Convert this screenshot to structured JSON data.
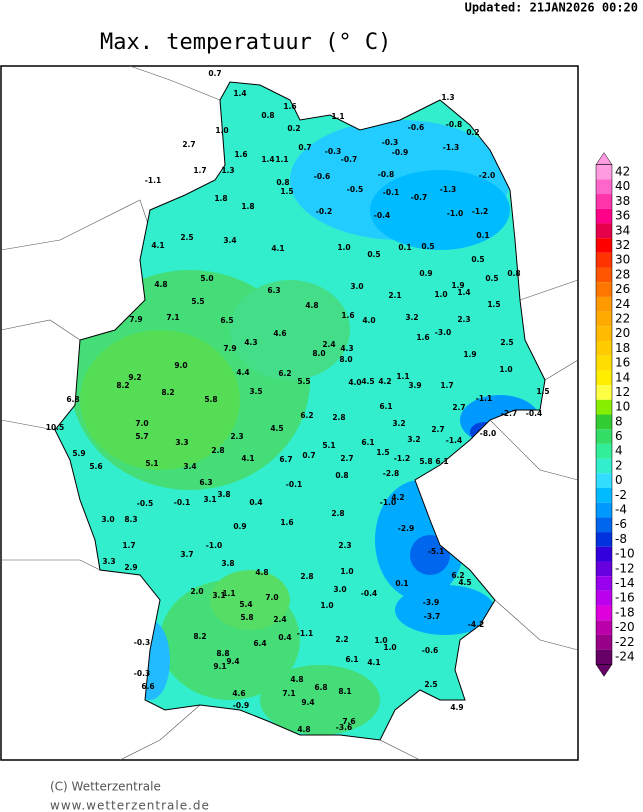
{
  "header": {
    "updated": "Updated: 21JAN2026  00:20",
    "title": "Max. temperatuur (° C)"
  },
  "colorbar": {
    "labels": [
      "42",
      "40",
      "38",
      "36",
      "34",
      "32",
      "30",
      "28",
      "26",
      "24",
      "22",
      "20",
      "18",
      "16",
      "14",
      "12",
      "10",
      "8",
      "6",
      "4",
      "2",
      "0",
      "-2",
      "-4",
      "-6",
      "-8",
      "-10",
      "-12",
      "-14",
      "-16",
      "-18",
      "-20",
      "-22",
      "-24"
    ],
    "colors": [
      "#ff9be0",
      "#ff66cc",
      "#ff33aa",
      "#ff0088",
      "#e6004c",
      "#ff0000",
      "#ff3300",
      "#ff5500",
      "#ff7700",
      "#ff9900",
      "#ffaa00",
      "#ffbb00",
      "#ffcc00",
      "#ffdd00",
      "#ffee00",
      "#ffff44",
      "#88ee00",
      "#33cc33",
      "#33dd66",
      "#33ee99",
      "#33eecc",
      "#33ddff",
      "#00bbff",
      "#0099ff",
      "#0066ee",
      "#0033dd",
      "#3300dd",
      "#6600dd",
      "#9900ee",
      "#bb00ee",
      "#dd00dd",
      "#bb00aa",
      "#990088",
      "#660066"
    ]
  },
  "stations": [
    "0.7",
    "1.4",
    "1.6",
    "0.8",
    "0.2",
    "1.1",
    "1.3",
    "-0.6",
    "-0.8",
    "0.2",
    "1.0",
    "2.7",
    "0.7",
    "-0.3",
    "-0.3",
    "-0.9",
    "-1.3",
    "1.6",
    "1.4",
    "1.1",
    "-0.7",
    "1.7",
    "1.3",
    "-0.6",
    "-0.8",
    "-2.0",
    "-1.1",
    "0.8",
    "1.5",
    "-0.5",
    "-0.1",
    "-1.3",
    "1.8",
    "-0.7",
    "1.8",
    "-0.2",
    "-0.4",
    "-1.0",
    "-1.2",
    "2.5",
    "3.4",
    "0.1",
    "4.1",
    "4.1",
    "1.0",
    "0.1",
    "0.5",
    "0.5",
    "0.5",
    "0.9",
    "0.5",
    "0.8",
    "5.0",
    "4.8",
    "3.0",
    "1.9",
    "1.0",
    "1.4",
    "2.1",
    "6.3",
    "5.5",
    "4.8",
    "1.5",
    "7.9",
    "7.1",
    "6.5",
    "1.6",
    "4.0",
    "3.2",
    "2.3",
    "4.6",
    "-3.0",
    "1.6",
    "4.3",
    "2.5",
    "7.9",
    "2.4",
    "4.3",
    "8.0",
    "8.0",
    "1.9",
    "9.0",
    "4.4",
    "6.2",
    "1.1",
    "1.0",
    "9.2",
    "5.5",
    "4.0",
    "4.5",
    "4.2",
    "3.9",
    "1.7",
    "8.2",
    "8.2",
    "3.5",
    "1.5",
    "6.8",
    "5.8",
    "-1.1",
    "2.7",
    "6.1",
    "-2.7",
    "-0.4",
    "6.2",
    "2.8",
    "7.0",
    "10.5",
    "3.2",
    "2.7",
    "4.5",
    "-8.0",
    "5.7",
    "2.3",
    "-1.4",
    "3.2",
    "3.3",
    "6.1",
    "5.1",
    "2.8",
    "1.5",
    "5.9",
    "-1.2",
    "4.1",
    "6.7",
    "0.7",
    "2.7",
    "5.8",
    "6.1",
    "5.6",
    "5.1",
    "3.4",
    "-2.8",
    "0.8",
    "6.3",
    "-0.1",
    "-1.0",
    "4.2",
    "3.8",
    "3.1",
    "-0.5",
    "-0.1",
    "0.4",
    "2.8",
    "3.0",
    "8.3",
    "1.6",
    "-2.9",
    "0.9",
    "1.7",
    "-1.0",
    "2.3",
    "-5.1",
    "3.7",
    "3.8",
    "3.3",
    "2.9",
    "4.8",
    "1.0",
    "2.8",
    "6.2",
    "4.5",
    "0.1",
    "2.0",
    "3.1",
    "1.1",
    "3.0",
    "-0.4",
    "7.0",
    "5.4",
    "1.0",
    "-3.9",
    "5.8",
    "2.4",
    "-3.7",
    "-4.2",
    "-1.1",
    "0.4",
    "2.2",
    "8.2",
    "-0.3",
    "1.0",
    "1.0",
    "6.4",
    "-0.6",
    "8.8",
    "9.4",
    "9.1",
    "6.1",
    "-0.3",
    "4.1",
    "6.6",
    "2.5",
    "4.8",
    "4.6",
    "7.1",
    "6.8",
    "8.1",
    "-0.9",
    "9.4",
    "4.9",
    "7.6",
    "-3.6",
    "4.8"
  ],
  "footer": {
    "copyright": "(C) Wetterzentrale",
    "url": "www.wetterzentrale.de"
  }
}
